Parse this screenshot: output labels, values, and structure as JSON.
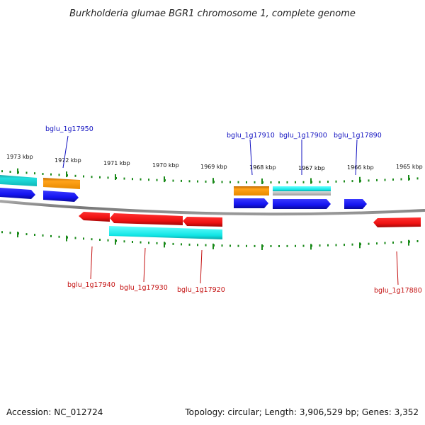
{
  "title": "Burkholderia glumae BGR1 chromosome 1, complete genome",
  "footer": {
    "accession": "Accession: NC_012724",
    "topology": "Topology: circular; Length: 3,906,529 bp; Genes: 3,352"
  },
  "scale_labels": [
    "1973 kbp",
    "1972 kbp",
    "1971 kbp",
    "1970 kbp",
    "1969 kbp",
    "1968 kbp",
    "1967 kbp",
    "1966 kbp",
    "1965 kbp"
  ],
  "gene_labels_top": [
    "bglu_1g17950",
    "bglu_1g17910",
    "bglu_1g17900",
    "bglu_1g17890"
  ],
  "gene_labels_bottom": [
    "bglu_1g17940",
    "bglu_1g17930",
    "bglu_1g17920",
    "bglu_1g17880"
  ],
  "colors": {
    "blue": "#1414f0",
    "red": "#f01414",
    "orange": "#ff9900",
    "cyan": "#1cd4d4",
    "grey": "#b4b4b4",
    "backbone": "#808080",
    "ticks": "#1a8a1a",
    "label_blue": "#1010c0",
    "label_red": "#c41010"
  }
}
